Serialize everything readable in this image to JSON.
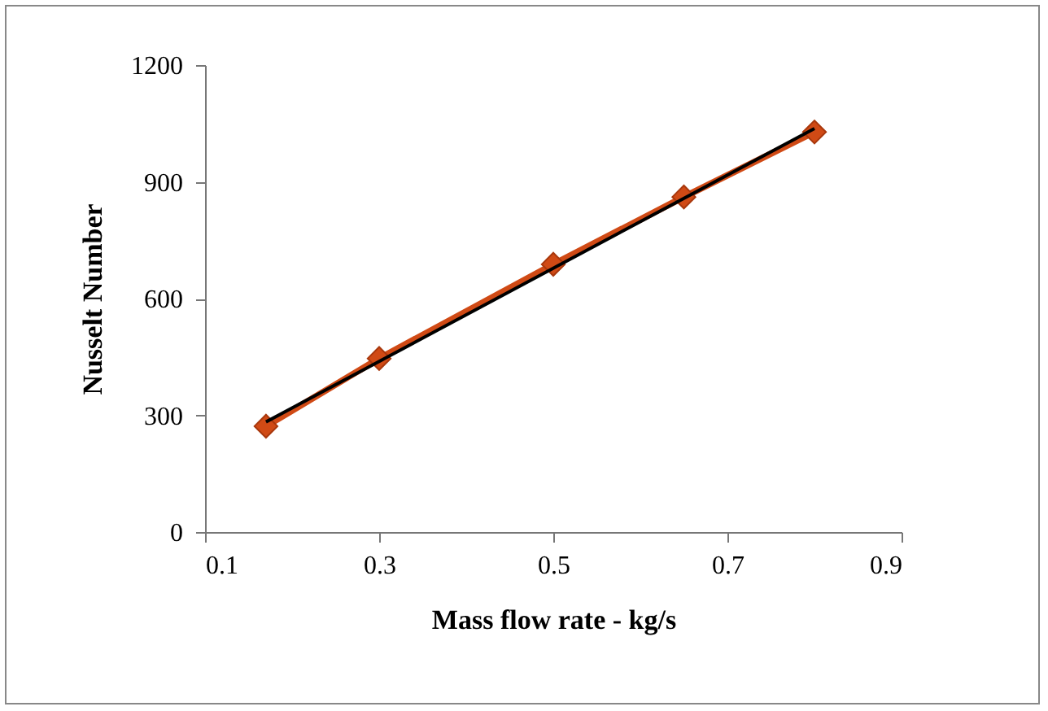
{
  "chart_data": {
    "type": "line",
    "xlabel": "Mass flow rate - kg/s",
    "ylabel": "Nusselt Number",
    "x": [
      0.17,
      0.3,
      0.5,
      0.65,
      0.8
    ],
    "series": [
      {
        "color": "#d04a15",
        "values": [
          272,
          446,
          688,
          861,
          1028
        ],
        "marker": "diamond"
      },
      {
        "type": "line",
        "color": "#000000",
        "x": [
          0.17,
          0.8
        ],
        "values": [
          283,
          1037
        ],
        "marker": "none"
      }
    ],
    "xlim": [
      0.1,
      0.9
    ],
    "xticks": [
      0.1,
      0.3,
      0.5,
      0.7,
      0.9
    ],
    "ylim": [
      0,
      1200
    ],
    "yticks": [
      0,
      300,
      600,
      900,
      1200
    ],
    "grid": false,
    "legend": false
  }
}
